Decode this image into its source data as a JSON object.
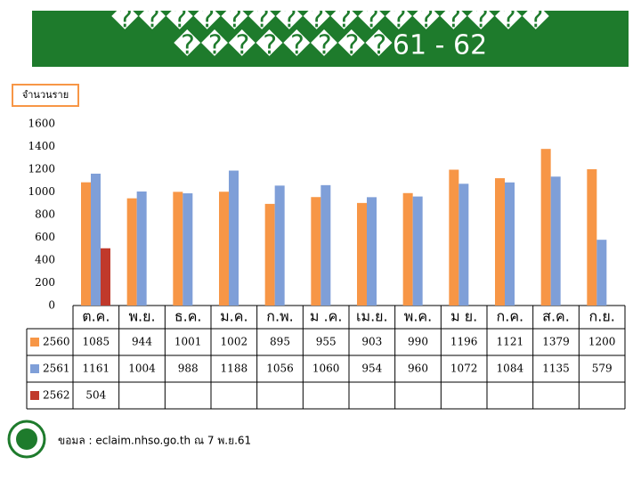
{
  "chart_data": {
    "type": "bar",
    "title": "����������������",
    "subtitle": "��������61 - 62",
    "y_label": "จำนวนราย",
    "categories": [
      "ต.ค.",
      "พ.ย.",
      "ธ.ค.",
      "ม.ค.",
      "ก.พ.",
      "ม .ค.",
      "เม.ย.",
      "พ.ค.",
      "ม ย.",
      "ก.ค.",
      "ส.ค.",
      "ก.ย."
    ],
    "series": [
      {
        "name": "2560",
        "color": "#f79646",
        "values": [
          1085,
          944,
          1001,
          1002,
          895,
          955,
          903,
          990,
          1196,
          1121,
          1379,
          1200
        ]
      },
      {
        "name": "2561",
        "color": "#7f9fd8",
        "values": [
          1161,
          1004,
          988,
          1188,
          1056,
          1060,
          954,
          960,
          1072,
          1084,
          1135,
          579
        ]
      },
      {
        "name": "2562",
        "color": "#c0392b",
        "values": [
          504,
          null,
          null,
          null,
          null,
          null,
          null,
          null,
          null,
          null,
          null,
          null
        ]
      }
    ],
    "ylim": [
      0,
      1600
    ],
    "yticks": [
      0,
      200,
      400,
      600,
      800,
      1000,
      1200,
      1400,
      1600
    ],
    "source": "ขอมล : eclaim.nhso.go.th ณ 7 พ.ย.61"
  }
}
